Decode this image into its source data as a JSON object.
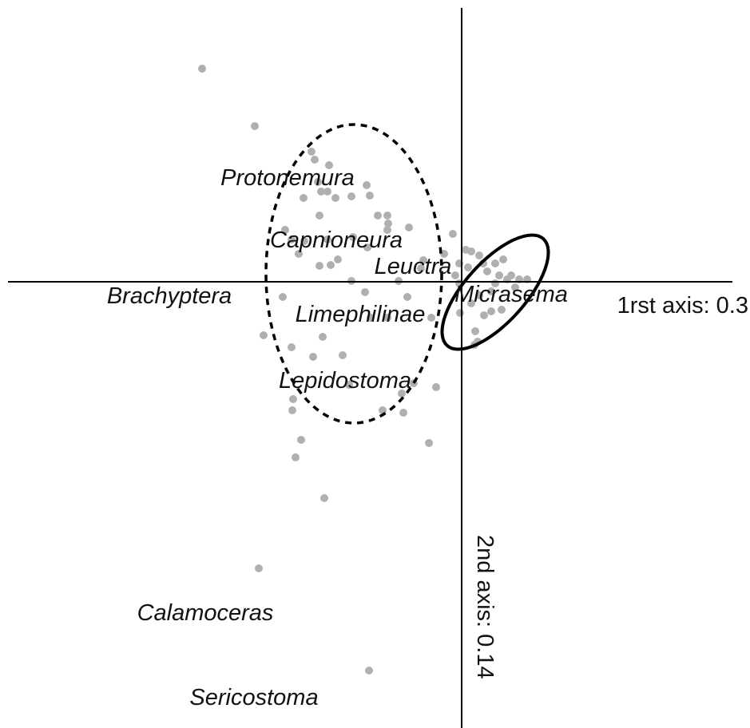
{
  "chart_data": {
    "type": "scatter",
    "x_label": "1rst axis: 0.3",
    "y_label": "2nd axis: 0.14",
    "xlim": [
      -5.68,
      3.39
    ],
    "ylim": [
      -5.59,
      3.43
    ],
    "point_color": "#b0b0b0",
    "x": [
      -3.25,
      -2.59,
      -1.88,
      -1.84,
      -1.66,
      -1.8,
      -1.76,
      -1.68,
      -1.58,
      -1.38,
      -1.15,
      -1.19,
      -1.98,
      -1.78,
      -1.05,
      -0.93,
      -0.92,
      -0.93,
      -0.66,
      -2.21,
      -2.13,
      -2.04,
      -1.97,
      -1.68,
      -1.36,
      -1.18,
      -1.55,
      -1.64,
      -1.78,
      -1.38,
      -1.21,
      -0.79,
      -0.68,
      -0.51,
      -0.48,
      -0.22,
      -0.11,
      0.05,
      -0.03,
      0.12,
      0.22,
      0.27,
      0.32,
      0.42,
      0.52,
      0.47,
      0.62,
      0.72,
      0.82,
      0.67,
      0.42,
      0.37,
      0.22,
      0.12,
      0.28,
      0.37,
      0.5,
      0.17,
      0.2,
      0.16,
      -0.02,
      -0.03,
      -0.08,
      0.08,
      -2.24,
      -2.48,
      -2.13,
      -1.74,
      -1.86,
      -1.49,
      -1.41,
      -1.14,
      -0.93,
      -0.32,
      -0.6,
      -0.75,
      -0.73,
      -0.99,
      -2.11,
      -2.12,
      -2.01,
      -2.08,
      -0.41,
      -1.72,
      -2.54,
      -1.16,
      -0.38,
      0.57
    ],
    "y": [
      2.67,
      1.95,
      1.63,
      1.53,
      1.46,
      1.25,
      1.13,
      1.13,
      1.05,
      1.07,
      1.08,
      1.21,
      1.05,
      0.83,
      0.83,
      0.83,
      0.73,
      0.65,
      0.68,
      0.65,
      0.53,
      0.35,
      0.51,
      0.53,
      0.56,
      0.43,
      0.28,
      0.21,
      0.2,
      0.01,
      -0.13,
      0.01,
      -0.19,
      0.17,
      0.27,
      0.35,
      0.6,
      0.4,
      0.23,
      0.38,
      0.33,
      0.23,
      0.13,
      0.23,
      0.28,
      0.08,
      0.08,
      0.03,
      0.03,
      -0.07,
      -0.02,
      -0.12,
      -0.17,
      -0.27,
      -0.42,
      -0.37,
      -0.35,
      -0.62,
      -0.75,
      -0.79,
      -0.39,
      -0.02,
      0.08,
      0.18,
      -0.19,
      -0.67,
      -0.82,
      -0.69,
      -0.94,
      -0.92,
      -1.29,
      -0.45,
      -0.45,
      -1.32,
      -1.27,
      -1.4,
      -1.64,
      -1.61,
      -1.47,
      -1.61,
      -1.98,
      -2.2,
      -2.02,
      -2.71,
      -3.59,
      -4.87,
      -0.45,
      0.03
    ],
    "species": {
      "names": [
        "Protonemura",
        "Capnioneura",
        "Leuctra",
        "Micrasema",
        "Brachyptera",
        "Limephilinae",
        "Lepidostoma",
        "Calamoceras",
        "Sericostoma"
      ],
      "x": [
        -2.18,
        -1.57,
        -0.61,
        0.62,
        -3.66,
        -1.27,
        -1.46,
        -3.21,
        -2.6
      ],
      "y": [
        1.31,
        0.53,
        0.2,
        -0.15,
        -0.17,
        -0.4,
        -1.23,
        -4.14,
        -5.2
      ]
    },
    "ellipses": [
      {
        "cx": -1.35,
        "cy": 0.1,
        "rx": 1.1,
        "ry": 1.87,
        "angle": 0,
        "style": "dashed"
      },
      {
        "cx": 0.42,
        "cy": -0.13,
        "rx": 0.9,
        "ry": 0.38,
        "angle": 48,
        "style": "solid"
      }
    ]
  }
}
